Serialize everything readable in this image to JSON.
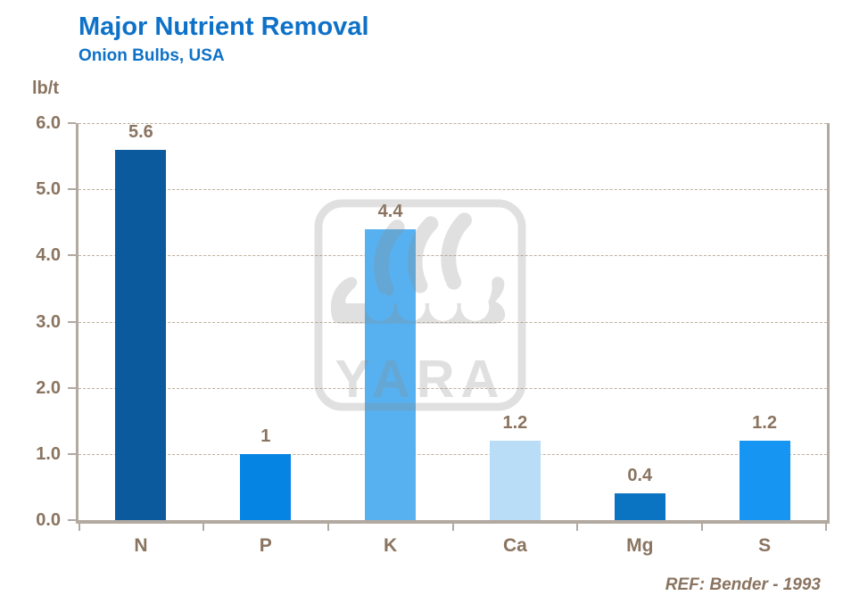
{
  "header": {
    "title": "Major Nutrient Removal",
    "subtitle": "Onion Bulbs, USA"
  },
  "watermark": {
    "text": "YARA"
  },
  "footer": {
    "reference": "REF: Bender - 1993"
  },
  "chart_data": {
    "type": "bar",
    "title": "Major Nutrient Removal",
    "subtitle": "Onion Bulbs, USA",
    "ylabel": "lb/t",
    "xlabel": "",
    "categories": [
      "N",
      "P",
      "K",
      "Ca",
      "Mg",
      "S"
    ],
    "values": [
      5.6,
      1,
      4.4,
      1.2,
      0.4,
      1.2
    ],
    "value_labels": [
      "5.6",
      "1",
      "4.4",
      "1.2",
      "0.4",
      "1.2"
    ],
    "bar_colors": [
      "#0b5a9d",
      "#0584e4",
      "#57b1f0",
      "#b9dcf7",
      "#0a73c2",
      "#1696f2"
    ],
    "ylim": [
      0,
      6
    ],
    "ytick_step": 1,
    "ytick_labels": [
      "0.0",
      "1.0",
      "2.0",
      "3.0",
      "4.0",
      "5.0",
      "6.0"
    ],
    "grid": true,
    "gridline_style": "dashed",
    "legend": "none",
    "reference": "REF: Bender - 1993"
  },
  "colors": {
    "title_blue": "#0e71c8",
    "text_brown": "#8a7460",
    "axis": "#b2a9a1",
    "grid_line": "#c0b09c",
    "watermark_gray": "#8c8c8c"
  }
}
